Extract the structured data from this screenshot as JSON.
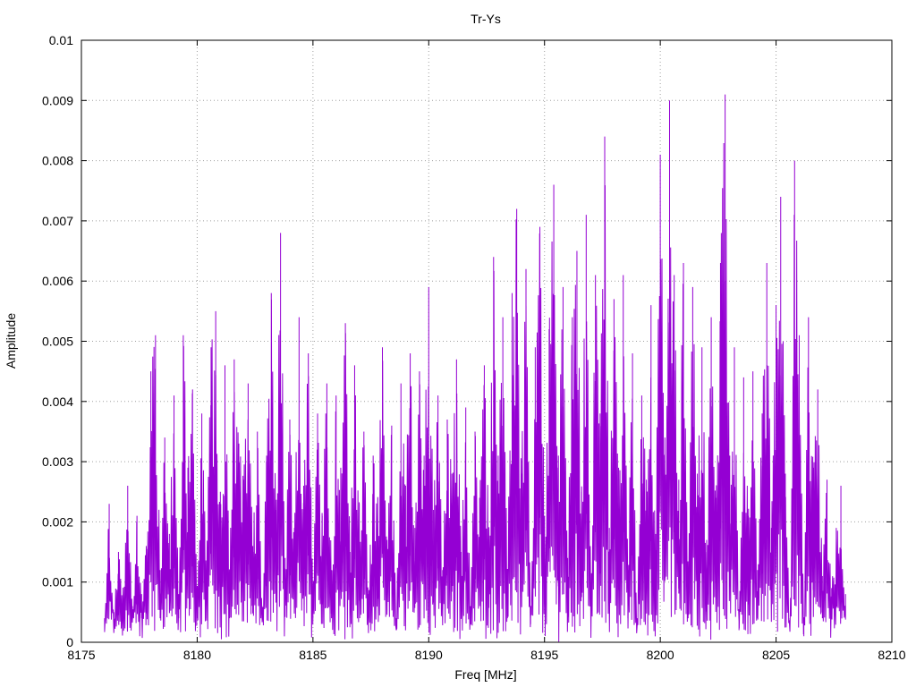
{
  "chart_data": {
    "type": "line",
    "title": "Tr-Ys",
    "xlabel": "Freq [MHz]",
    "ylabel": "Amplitude",
    "xlim": [
      8175,
      8210
    ],
    "ylim": [
      0,
      0.01
    ],
    "x_ticks": [
      "8175",
      "8180",
      "8185",
      "8190",
      "8195",
      "8200",
      "8205",
      "8210"
    ],
    "y_ticks": [
      "0",
      "0.001",
      "0.002",
      "0.003",
      "0.004",
      "0.005",
      "0.006",
      "0.007",
      "0.008",
      "0.009",
      "0.01"
    ],
    "grid": true,
    "legend": "none",
    "series": [
      {
        "color": "#9400d3",
        "x_range": [
          8176.0,
          8208.0
        ],
        "point_count": 1200,
        "points": [
          [
            8176.0,
            0.0002
          ],
          [
            8176.2,
            0.0023
          ],
          [
            8176.4,
            0.0005
          ],
          [
            8176.6,
            0.0015
          ],
          [
            8176.8,
            0.0009
          ],
          [
            8177.0,
            0.0026
          ],
          [
            8177.2,
            0.0006
          ],
          [
            8177.4,
            0.0021
          ],
          [
            8177.6,
            0.0008
          ],
          [
            8177.8,
            0.0016
          ],
          [
            8178.0,
            0.0045
          ],
          [
            8178.2,
            0.0051
          ],
          [
            8178.4,
            0.0012
          ],
          [
            8178.6,
            0.0034
          ],
          [
            8178.8,
            0.0018
          ],
          [
            8179.0,
            0.0041
          ],
          [
            8179.2,
            0.0008
          ],
          [
            8179.4,
            0.0051
          ],
          [
            8179.6,
            0.0029
          ],
          [
            8179.8,
            0.0042
          ],
          [
            8180.0,
            0.0009
          ],
          [
            8180.2,
            0.0038
          ],
          [
            8180.4,
            0.0012
          ],
          [
            8180.6,
            0.0049
          ],
          [
            8180.8,
            0.0055
          ],
          [
            8181.0,
            0.0025
          ],
          [
            8181.2,
            0.0046
          ],
          [
            8181.4,
            0.0011
          ],
          [
            8181.6,
            0.0047
          ],
          [
            8181.8,
            0.0033
          ],
          [
            8182.0,
            0.0027
          ],
          [
            8182.2,
            0.0043
          ],
          [
            8182.4,
            0.0016
          ],
          [
            8182.6,
            0.0035
          ],
          [
            8182.8,
            0.0006
          ],
          [
            8183.0,
            0.0031
          ],
          [
            8183.2,
            0.0058
          ],
          [
            8183.4,
            0.0022
          ],
          [
            8183.6,
            0.0068
          ],
          [
            8183.8,
            0.0014
          ],
          [
            8184.0,
            0.0037
          ],
          [
            8184.2,
            0.0019
          ],
          [
            8184.4,
            0.0054
          ],
          [
            8184.6,
            0.0026
          ],
          [
            8184.8,
            0.0048
          ],
          [
            8185.0,
            0.0009
          ],
          [
            8185.2,
            0.0038
          ],
          [
            8185.4,
            0.0021
          ],
          [
            8185.6,
            0.0043
          ],
          [
            8185.8,
            0.0012
          ],
          [
            8186.0,
            0.0041
          ],
          [
            8186.2,
            0.0029
          ],
          [
            8186.4,
            0.0053
          ],
          [
            8186.6,
            0.0015
          ],
          [
            8186.8,
            0.0046
          ],
          [
            8187.0,
            0.0023
          ],
          [
            8187.2,
            0.0035
          ],
          [
            8187.4,
            0.0008
          ],
          [
            8187.6,
            0.0031
          ],
          [
            8187.8,
            0.0024
          ],
          [
            8188.0,
            0.0049
          ],
          [
            8188.2,
            0.0017
          ],
          [
            8188.4,
            0.0036
          ],
          [
            8188.6,
            0.0002
          ],
          [
            8188.8,
            0.0043
          ],
          [
            8189.0,
            0.0026
          ],
          [
            8189.2,
            0.0048
          ],
          [
            8189.4,
            0.0019
          ],
          [
            8189.6,
            0.0045
          ],
          [
            8189.8,
            0.0031
          ],
          [
            8190.0,
            0.0059
          ],
          [
            8190.2,
            0.0022
          ],
          [
            8190.4,
            0.0041
          ],
          [
            8190.6,
            0.0012
          ],
          [
            8190.8,
            0.0037
          ],
          [
            8191.0,
            0.0028
          ],
          [
            8191.2,
            0.0047
          ],
          [
            8191.4,
            0.0015
          ],
          [
            8191.6,
            0.0039
          ],
          [
            8191.8,
            0.0006
          ],
          [
            8192.0,
            0.0035
          ],
          [
            8192.2,
            0.0024
          ],
          [
            8192.4,
            0.0046
          ],
          [
            8192.6,
            0.0019
          ],
          [
            8192.8,
            0.0064
          ],
          [
            8193.0,
            0.0031
          ],
          [
            8193.2,
            0.0054
          ],
          [
            8193.4,
            0.0012
          ],
          [
            8193.6,
            0.0058
          ],
          [
            8193.8,
            0.0072
          ],
          [
            8194.0,
            0.0028
          ],
          [
            8194.2,
            0.0062
          ],
          [
            8194.4,
            0.0003
          ],
          [
            8194.6,
            0.0049
          ],
          [
            8194.8,
            0.0069
          ],
          [
            8195.0,
            0.0021
          ],
          [
            8195.2,
            0.0052
          ],
          [
            8195.4,
            0.0076
          ],
          [
            8195.6,
            0.0031
          ],
          [
            8195.8,
            0.0059
          ],
          [
            8196.0,
            0.0014
          ],
          [
            8196.2,
            0.0054
          ],
          [
            8196.4,
            0.0065
          ],
          [
            8196.6,
            0.0025
          ],
          [
            8196.8,
            0.0071
          ],
          [
            8197.0,
            0.0009
          ],
          [
            8197.2,
            0.0061
          ],
          [
            8197.4,
            0.0038
          ],
          [
            8197.6,
            0.0084
          ],
          [
            8197.8,
            0.0019
          ],
          [
            8198.0,
            0.0057
          ],
          [
            8198.2,
            0.0029
          ],
          [
            8198.4,
            0.0061
          ],
          [
            8198.6,
            0.0012
          ],
          [
            8198.8,
            0.0048
          ],
          [
            8199.0,
            0.0003
          ],
          [
            8199.2,
            0.0041
          ],
          [
            8199.4,
            0.0027
          ],
          [
            8199.6,
            0.0056
          ],
          [
            8199.8,
            0.0018
          ],
          [
            8200.0,
            0.0081
          ],
          [
            8200.2,
            0.0034
          ],
          [
            8200.4,
            0.009
          ],
          [
            8200.6,
            0.0061
          ],
          [
            8200.8,
            0.0027
          ],
          [
            8201.0,
            0.0063
          ],
          [
            8201.2,
            0.0012
          ],
          [
            8201.4,
            0.0059
          ],
          [
            8201.6,
            0.0028
          ],
          [
            8201.8,
            0.0049
          ],
          [
            8202.0,
            0.0017
          ],
          [
            8202.2,
            0.0054
          ],
          [
            8202.4,
            0.0024
          ],
          [
            8202.6,
            0.0063
          ],
          [
            8202.8,
            0.0091
          ],
          [
            8203.0,
            0.0031
          ],
          [
            8203.2,
            0.0049
          ],
          [
            8203.4,
            0.0002
          ],
          [
            8203.6,
            0.0044
          ],
          [
            8203.8,
            0.0021
          ],
          [
            8204.0,
            0.0045
          ],
          [
            8204.2,
            0.0012
          ],
          [
            8204.4,
            0.0038
          ],
          [
            8204.6,
            0.0063
          ],
          [
            8204.8,
            0.0019
          ],
          [
            8205.0,
            0.0056
          ],
          [
            8205.2,
            0.0074
          ],
          [
            8205.4,
            0.0028
          ],
          [
            8205.6,
            0.0002
          ],
          [
            8205.8,
            0.008
          ],
          [
            8206.0,
            0.0051
          ],
          [
            8206.2,
            0.0001
          ],
          [
            8206.4,
            0.0054
          ],
          [
            8206.6,
            0.0029
          ],
          [
            8206.8,
            0.0042
          ],
          [
            8207.0,
            0.0011
          ],
          [
            8207.2,
            0.0027
          ],
          [
            8207.4,
            0.0009
          ],
          [
            8207.6,
            0.0019
          ],
          [
            8207.8,
            0.0026
          ],
          [
            8208.0,
            0.0008
          ]
        ]
      }
    ]
  }
}
